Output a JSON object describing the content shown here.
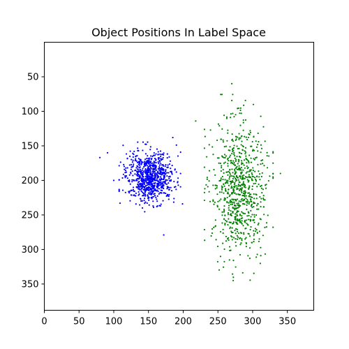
{
  "chart_data": {
    "type": "scatter",
    "title": "Object Positions In Label Space",
    "xlabel": "",
    "ylabel": "",
    "xlim": [
      0,
      388
    ],
    "ylim": [
      388,
      0
    ],
    "y_inverted": true,
    "grid": false,
    "x_ticks": [
      0,
      50,
      100,
      150,
      200,
      250,
      300,
      350
    ],
    "y_ticks": [
      50,
      100,
      150,
      200,
      250,
      300,
      350
    ],
    "series": [
      {
        "color": "#0000ff",
        "cluster_center": [
          152,
          195
        ],
        "cluster_spread": [
          17,
          18
        ],
        "point_count": 800,
        "outliers": [
          [
            80,
            167
          ],
          [
            91,
            160
          ],
          [
            100,
            200
          ],
          [
            109,
            233
          ],
          [
            172,
            279
          ],
          [
            185,
            138
          ],
          [
            199,
            234
          ]
        ]
      },
      {
        "color": "#008000",
        "cluster_center": [
          280,
          210
        ],
        "cluster_spread": [
          19,
          48
        ],
        "point_count": 800,
        "outliers": [
          [
            218,
            114
          ],
          [
            270,
            60
          ],
          [
            272,
            345
          ],
          [
            340,
            190
          ]
        ]
      }
    ]
  }
}
